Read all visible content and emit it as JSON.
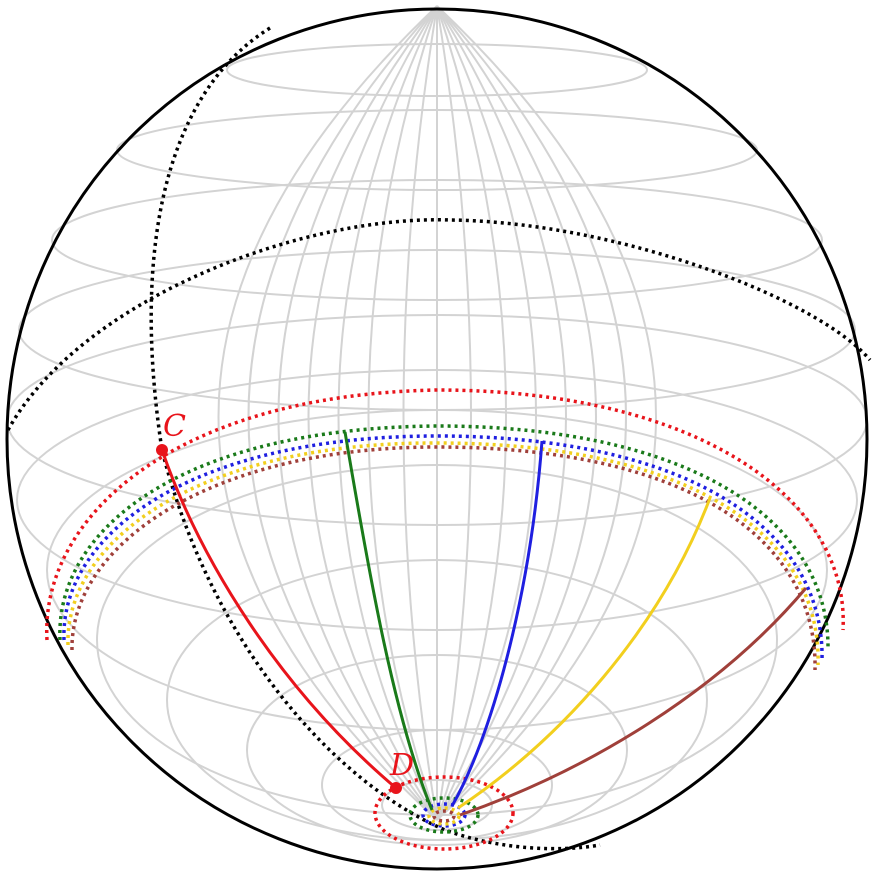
{
  "points": {
    "C": {
      "label": "C",
      "color": "#e8141b"
    },
    "D": {
      "label": "D",
      "color": "#e8141b"
    }
  },
  "colors": {
    "grid": "#d3d3d3",
    "outline": "#000000",
    "reference": "#000000",
    "red": "#e8141b",
    "green": "#1a7a1a",
    "blue": "#1f1fe0",
    "gold": "#f2cf1e",
    "brown": "#a0403a"
  }
}
